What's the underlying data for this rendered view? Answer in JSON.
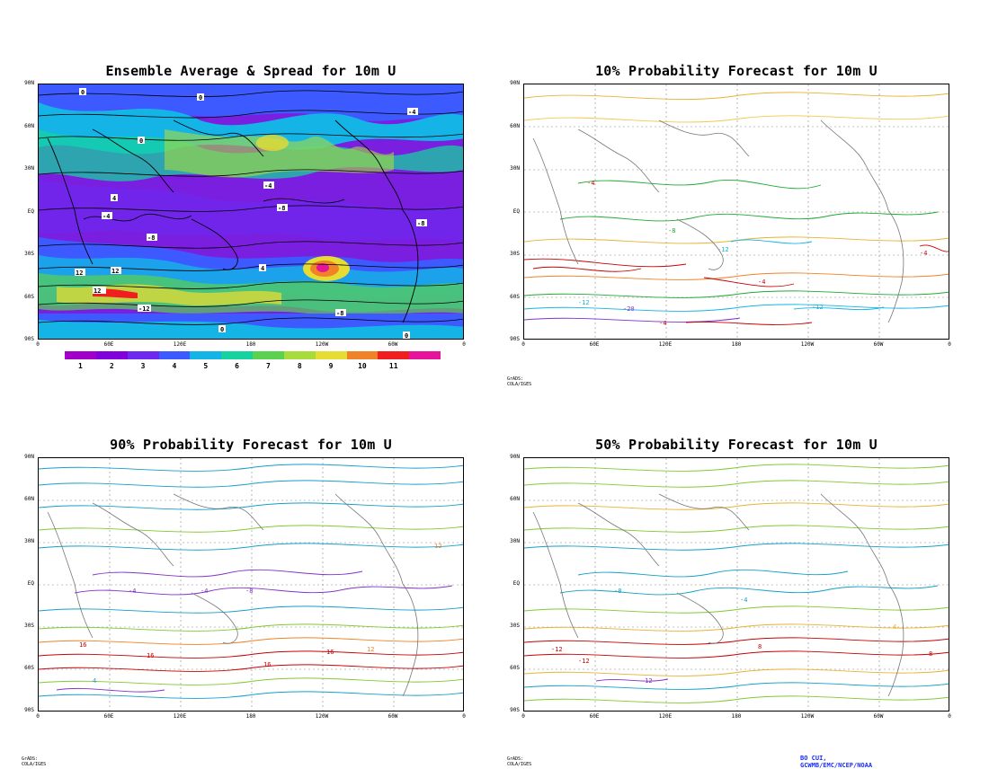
{
  "panels": [
    {
      "id": "ensemble",
      "title": "Ensemble Average & Spread for 10m U"
    },
    {
      "id": "p10",
      "title": "10% Probability Forecast for 10m U"
    },
    {
      "id": "p90",
      "title": "90% Probability Forecast for 10m U"
    },
    {
      "id": "p50",
      "title": "50% Probability Forecast for 10m U"
    }
  ],
  "axes": {
    "y_labels": [
      "90N",
      "60N",
      "30N",
      "EQ",
      "30S",
      "60S",
      "90S"
    ],
    "x_labels": [
      "0",
      "60E",
      "120E",
      "180",
      "120W",
      "60W",
      "0"
    ]
  },
  "colorbar": {
    "labels": [
      "1",
      "2",
      "3",
      "4",
      "5",
      "6",
      "7",
      "8",
      "9",
      "10",
      "11"
    ],
    "colors": [
      "#a000c8",
      "#8200dc",
      "#6e28f0",
      "#3c5aff",
      "#14b4e6",
      "#16d2a0",
      "#5ad250",
      "#a8dc3c",
      "#e6dc32",
      "#f08228",
      "#f01e1e",
      "#e6149a"
    ]
  },
  "credits": {
    "grads_1": "GrADS: COLA/IGES",
    "grads_2": "GrADS: COLA/IGES",
    "grads_3": "GrADS: COLA/IGES",
    "noaa": "BO CUI, GCWMB/EMC/NCEP/NOAA"
  },
  "contour_labels": {
    "ensemble": [
      "0",
      "-4",
      "4",
      "8",
      "12",
      "-8",
      "-12"
    ],
    "p10": [
      "-4",
      "-8",
      "-12",
      "-16",
      "-20",
      "4",
      "8"
    ],
    "p90": [
      "4",
      "8",
      "12",
      "16",
      "-4",
      "-8"
    ],
    "p50": [
      "-4",
      "-8",
      "-12",
      "4",
      "8",
      "12"
    ]
  }
}
